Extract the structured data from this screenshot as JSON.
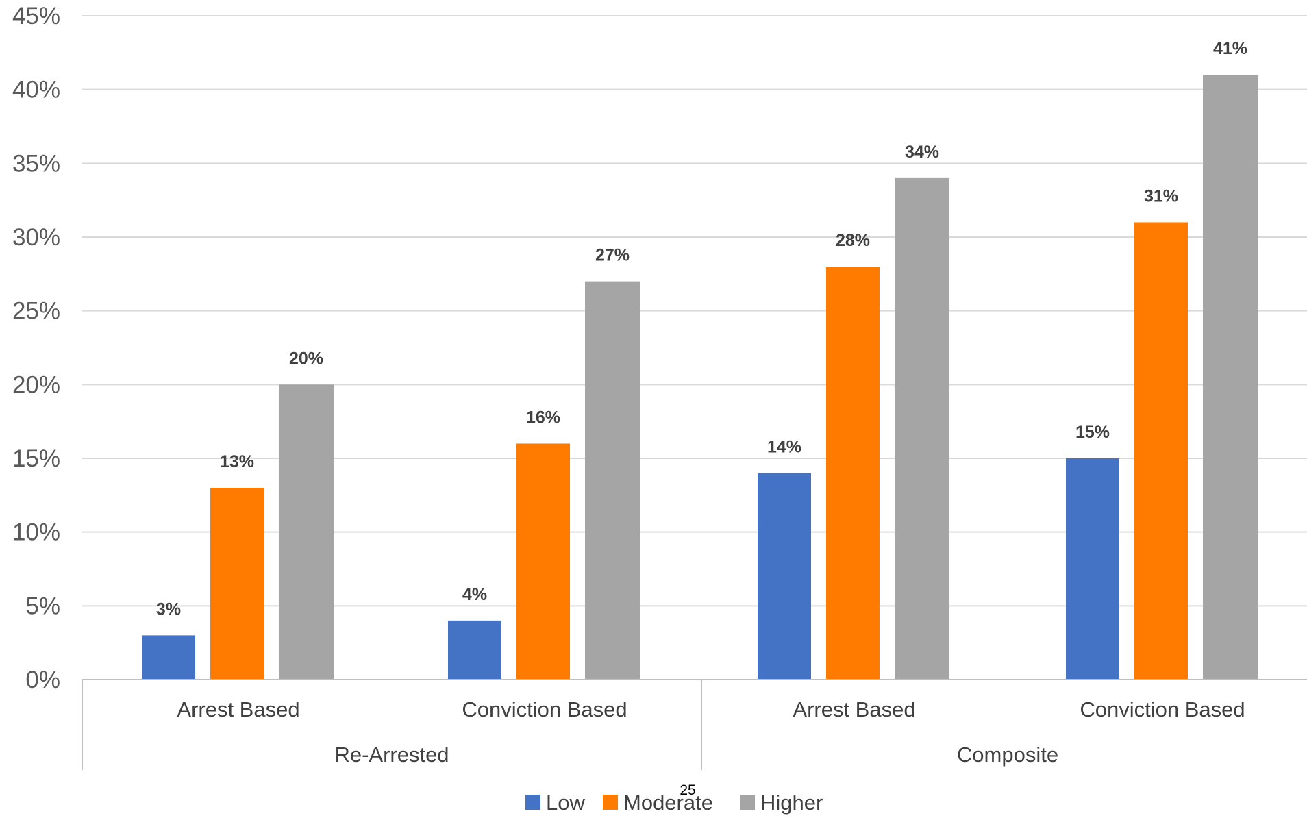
{
  "page_number": "25",
  "colors": {
    "Low": "#4472C4",
    "Moderate": "#FF7B00",
    "Higher": "#A5A5A5",
    "grid": "#D9D9D9",
    "axis": "#BFBFBF"
  },
  "chart_data": {
    "type": "bar",
    "title": "",
    "xlabel": "",
    "ylabel": "",
    "ylim": [
      0,
      45
    ],
    "y_ticks": [
      "0%",
      "5%",
      "10%",
      "15%",
      "20%",
      "25%",
      "30%",
      "35%",
      "40%",
      "45%"
    ],
    "grid": "horizontal",
    "legend_position": "bottom",
    "groups": [
      "Re-Arrested",
      "Composite"
    ],
    "categories": [
      "Arrest Based",
      "Conviction Based",
      "Arrest Based",
      "Conviction Based"
    ],
    "series": [
      {
        "name": "Low",
        "values": [
          3,
          4,
          14,
          15
        ],
        "labels": [
          "3%",
          "4%",
          "14%",
          "15%"
        ]
      },
      {
        "name": "Moderate",
        "values": [
          13,
          16,
          28,
          31
        ],
        "labels": [
          "13%",
          "16%",
          "28%",
          "31%"
        ]
      },
      {
        "name": "Higher",
        "values": [
          20,
          27,
          34,
          41
        ],
        "labels": [
          "20%",
          "27%",
          "34%",
          "41%"
        ]
      }
    ]
  }
}
